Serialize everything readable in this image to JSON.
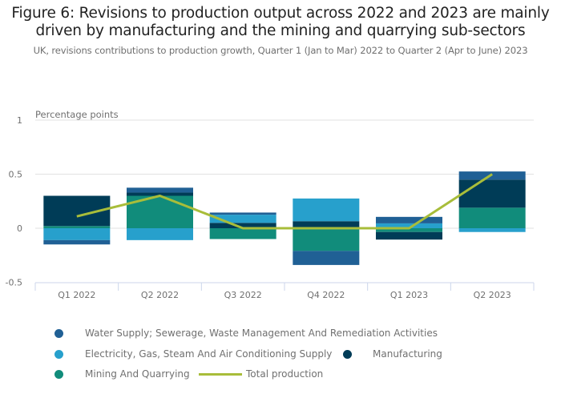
{
  "title_line1": "Figure 6: Revisions to production output across 2022 and 2023 are mainly",
  "title_line2": "driven by manufacturing and the mining and quarrying sub-sectors",
  "subtitle": "UK, revisions contributions to production growth, Quarter 1 (Jan to Mar) 2022 to Quarter 2 (Apr to June) 2023",
  "chart_data": {
    "type": "bar",
    "stacked": true,
    "title": "Figure 6: Revisions to production output across 2022 and 2023 are mainly driven by manufacturing and the mining and quarrying sub-sectors",
    "subtitle": "UK, revisions contributions to production growth, Quarter 1 (Jan to Mar) 2022 to Quarter 2 (Apr to June) 2023",
    "ylabel": "Percentage points",
    "xlabel": "",
    "ylim": [
      -0.5,
      1
    ],
    "yticks": [
      -0.5,
      0,
      0.5,
      1
    ],
    "ytick_labels": [
      "-0.5",
      "0",
      "0.5",
      "1"
    ],
    "grid": true,
    "categories": [
      "Q1 2022",
      "Q2 2022",
      "Q3 2022",
      "Q4 2022",
      "Q1 2023",
      "Q2 2023"
    ],
    "series": [
      {
        "name": "Mining And Quarrying",
        "color": "#118c7b",
        "values": [
          0.02,
          0.3,
          -0.1,
          -0.21,
          -0.035,
          0.19
        ]
      },
      {
        "name": "Manufacturing",
        "color": "#003c57",
        "values": [
          0.28,
          0.03,
          0.05,
          0.065,
          -0.07,
          0.26
        ]
      },
      {
        "name": "Electricity, Gas, Steam And Air Conditioning Supply",
        "color": "#27a0cc",
        "values": [
          -0.11,
          -0.11,
          0.075,
          0.21,
          0.045,
          -0.035
        ]
      },
      {
        "name": "Water Supply; Sewerage, Waste Management And Remediation Activities",
        "color": "#206095",
        "values": [
          -0.04,
          0.045,
          0.02,
          -0.13,
          0.06,
          0.075
        ]
      }
    ],
    "line_series": {
      "name": "Total production",
      "color": "#a8bd3a",
      "values": [
        0.11,
        0.3,
        0.0,
        0.0,
        0.0,
        0.5
      ]
    },
    "legend_position": "bottom"
  },
  "legend": [
    {
      "label": "Water Supply; Sewerage, Waste Management And Remediation Activities",
      "color": "#206095",
      "kind": "dot"
    },
    {
      "label": "Electricity, Gas, Steam And Air Conditioning Supply",
      "color": "#27a0cc",
      "kind": "dot"
    },
    {
      "label": "Manufacturing",
      "color": "#003c57",
      "kind": "dot"
    },
    {
      "label": "Mining And Quarrying",
      "color": "#118c7b",
      "kind": "dot"
    },
    {
      "label": "Total production",
      "color": "#a8bd3a",
      "kind": "line"
    }
  ]
}
